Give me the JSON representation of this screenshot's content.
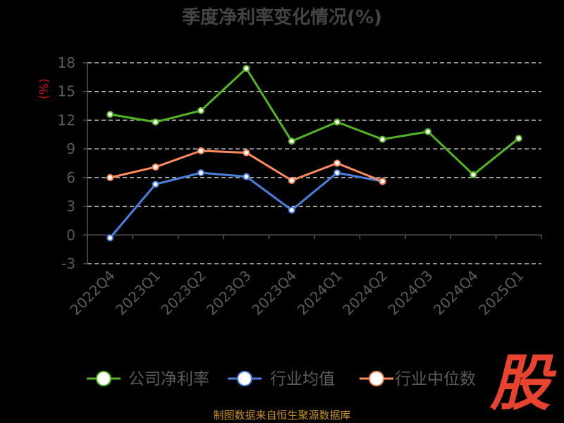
{
  "title": "季度净利率变化情况(%)",
  "source": "制图数据来自恒生聚源数据库",
  "logo_text": "股",
  "colors": {
    "background": "#000000",
    "title": "#444444",
    "axis": "#555555",
    "grid": "#e6e6e6",
    "tick_label": "#5a5a5a",
    "unit_label": "#cc1111",
    "company": "#52b521",
    "industry_avg": "#4a7fe0",
    "industry_median": "#ff8a5c",
    "logo": "#e8432e",
    "source": "#c89020"
  },
  "chart_data": {
    "type": "line",
    "title": "季度净利率变化情况(%)",
    "ylabel": "(%)",
    "xlabel": "",
    "categories": [
      "2022Q4",
      "2023Q1",
      "2023Q2",
      "2023Q3",
      "2023Q4",
      "2024Q1",
      "2024Q2",
      "2024Q3",
      "2024Q4",
      "2025Q1"
    ],
    "ylim": [
      -3,
      18
    ],
    "yticks": [
      -3,
      0,
      3,
      6,
      9,
      12,
      15,
      18
    ],
    "grid": true,
    "legend_position": "bottom",
    "series": [
      {
        "name": "公司净利率",
        "color": "#52b521",
        "values": [
          12.6,
          11.8,
          13.0,
          17.4,
          9.8,
          11.8,
          10.0,
          10.8,
          6.3,
          10.1
        ]
      },
      {
        "name": "行业均值",
        "color": "#4a7fe0",
        "values": [
          -0.3,
          5.3,
          6.5,
          6.1,
          2.6,
          6.5,
          5.6,
          null,
          null,
          null
        ]
      },
      {
        "name": "行业中位数",
        "color": "#ff8a5c",
        "values": [
          6.0,
          7.1,
          8.8,
          8.6,
          5.7,
          7.5,
          5.6,
          null,
          null,
          null
        ]
      }
    ]
  }
}
